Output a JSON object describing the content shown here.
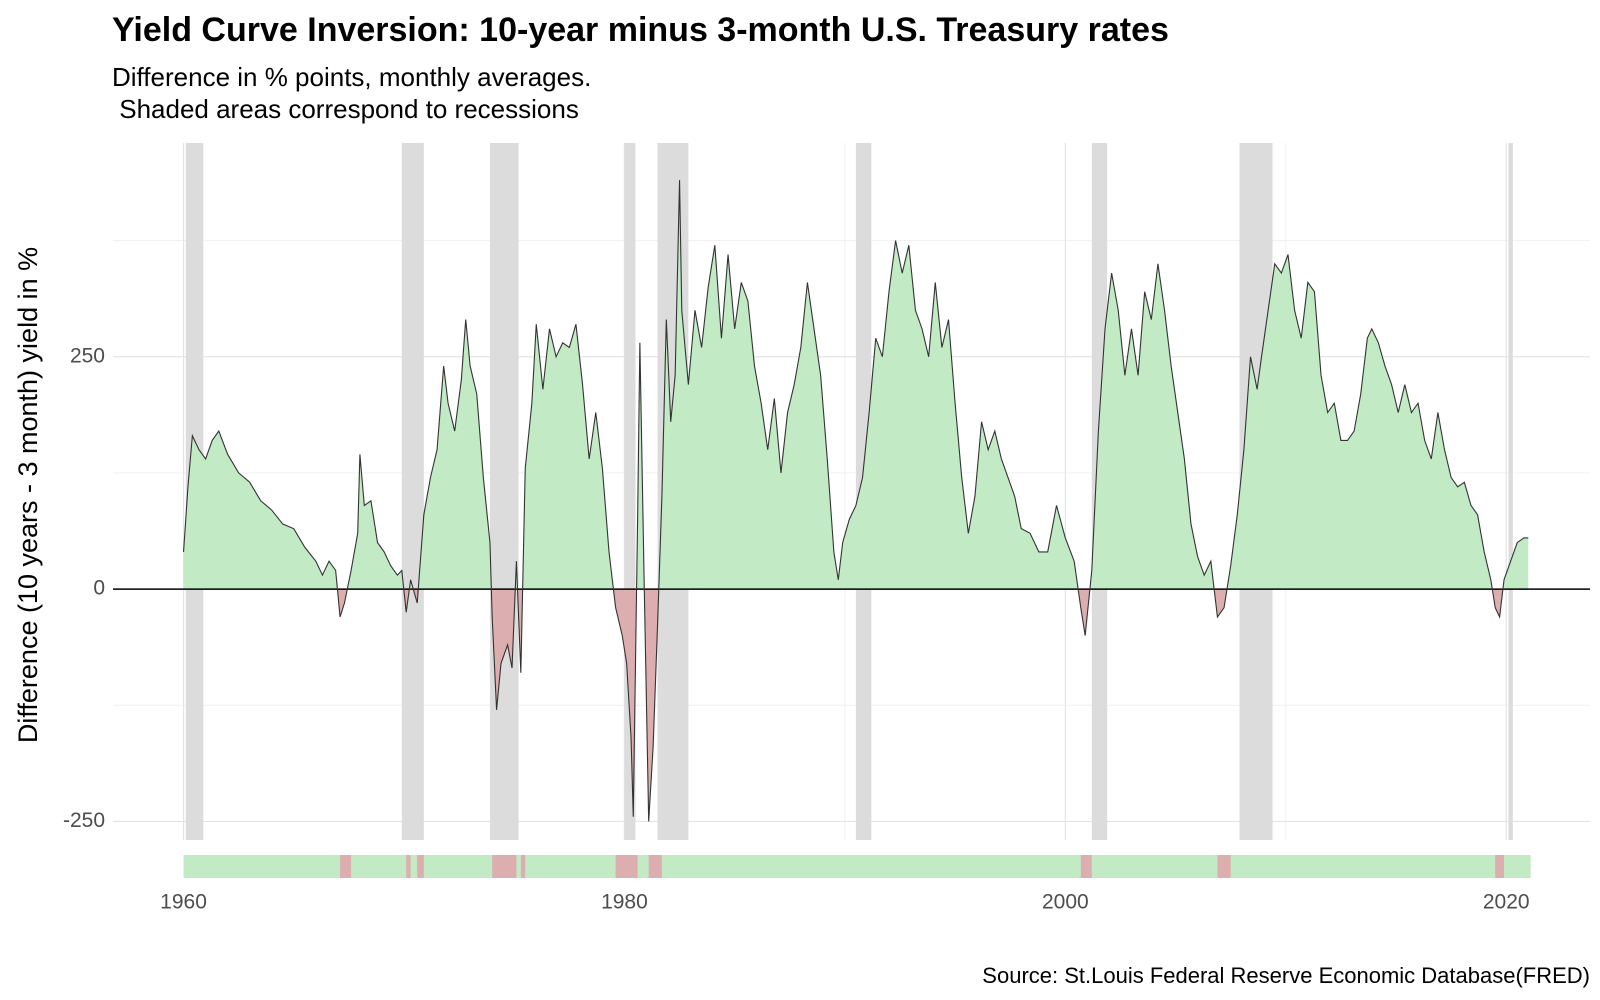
{
  "chart_data": {
    "type": "area",
    "title": "Yield Curve Inversion: 10-year minus 3-month U.S. Treasury rates",
    "subtitle": [
      "Difference in % points, monthly averages.",
      " Shaded areas correspond to recessions"
    ],
    "y_label": "Difference (10 years - 3 month) yield in %",
    "source": "Source: St.Louis Federal Reserve Economic Database(FRED)",
    "xlim": [
      1956.8,
      2023.8
    ],
    "xticks": [
      1960,
      1980,
      2000,
      2020
    ],
    "x_minor_grid": [
      1970,
      1990,
      2010
    ],
    "ylim": [
      -270,
      480
    ],
    "yticks": [
      -250,
      0,
      250
    ],
    "y_minor_grid": [
      -125,
      125,
      375
    ],
    "grid": true,
    "zero_line": true,
    "positive_color": "#c1eac5",
    "negative_color": "#dcaeb0",
    "line_color": "#333333",
    "recession_color": "#dcdcdc",
    "recessions": [
      [
        1960.1,
        1960.9
      ],
      [
        1969.9,
        1970.9
      ],
      [
        1973.9,
        1975.2
      ],
      [
        1980.0,
        1980.5
      ],
      [
        1981.5,
        1982.9
      ],
      [
        1990.5,
        1991.2
      ],
      [
        2001.2,
        2001.9
      ],
      [
        2007.9,
        2009.4
      ],
      [
        2020.1,
        2020.3
      ]
    ],
    "x": [
      1960.0,
      1960.2,
      1960.4,
      1960.7,
      1961.0,
      1961.3,
      1961.6,
      1962.0,
      1962.5,
      1963.0,
      1963.5,
      1964.0,
      1964.5,
      1965.0,
      1965.5,
      1966.0,
      1966.3,
      1966.6,
      1966.9,
      1967.1,
      1967.3,
      1967.6,
      1967.9,
      1968.0,
      1968.2,
      1968.5,
      1968.8,
      1969.1,
      1969.4,
      1969.7,
      1969.9,
      1970.1,
      1970.3,
      1970.6,
      1970.9,
      1971.2,
      1971.5,
      1971.8,
      1972.0,
      1972.3,
      1972.6,
      1972.8,
      1973.0,
      1973.3,
      1973.6,
      1973.9,
      1974.0,
      1974.2,
      1974.4,
      1974.7,
      1974.9,
      1975.1,
      1975.3,
      1975.5,
      1975.8,
      1976.0,
      1976.3,
      1976.6,
      1976.9,
      1977.2,
      1977.5,
      1977.8,
      1978.1,
      1978.4,
      1978.7,
      1979.0,
      1979.3,
      1979.6,
      1979.9,
      1980.1,
      1980.3,
      1980.4,
      1980.6,
      1980.7,
      1980.9,
      1981.1,
      1981.3,
      1981.5,
      1981.7,
      1981.9,
      1982.1,
      1982.3,
      1982.5,
      1982.6,
      1982.9,
      1983.2,
      1983.5,
      1983.8,
      1984.1,
      1984.4,
      1984.7,
      1985.0,
      1985.3,
      1985.6,
      1985.9,
      1986.2,
      1986.5,
      1986.8,
      1987.1,
      1987.4,
      1987.7,
      1988.0,
      1988.3,
      1988.6,
      1988.9,
      1989.2,
      1989.5,
      1989.7,
      1989.9,
      1990.2,
      1990.5,
      1990.8,
      1991.1,
      1991.4,
      1991.7,
      1992.0,
      1992.3,
      1992.6,
      1992.9,
      1993.2,
      1993.5,
      1993.8,
      1994.1,
      1994.4,
      1994.7,
      1995.0,
      1995.3,
      1995.6,
      1995.9,
      1996.2,
      1996.5,
      1996.8,
      1997.1,
      1997.4,
      1997.7,
      1998.0,
      1998.4,
      1998.8,
      1999.2,
      1999.6,
      2000.0,
      2000.4,
      2000.7,
      2000.9,
      2001.2,
      2001.5,
      2001.8,
      2002.1,
      2002.4,
      2002.7,
      2003.0,
      2003.3,
      2003.6,
      2003.9,
      2004.2,
      2004.5,
      2004.8,
      2005.1,
      2005.4,
      2005.7,
      2006.0,
      2006.3,
      2006.6,
      2006.9,
      2007.2,
      2007.5,
      2007.8,
      2008.1,
      2008.4,
      2008.7,
      2008.9,
      2009.2,
      2009.5,
      2009.8,
      2010.1,
      2010.4,
      2010.7,
      2011.0,
      2011.3,
      2011.6,
      2011.9,
      2012.2,
      2012.5,
      2012.8,
      2013.1,
      2013.4,
      2013.7,
      2013.9,
      2014.2,
      2014.5,
      2014.8,
      2015.1,
      2015.4,
      2015.7,
      2016.0,
      2016.3,
      2016.6,
      2016.9,
      2017.2,
      2017.5,
      2017.8,
      2018.1,
      2018.4,
      2018.7,
      2019.0,
      2019.3,
      2019.5,
      2019.7,
      2019.9,
      2020.2,
      2020.5,
      2020.8,
      2021.0
    ],
    "values": [
      40,
      110,
      165,
      150,
      140,
      160,
      170,
      145,
      125,
      115,
      95,
      85,
      70,
      65,
      45,
      30,
      15,
      30,
      20,
      -30,
      -15,
      20,
      60,
      145,
      90,
      95,
      50,
      40,
      25,
      15,
      20,
      -25,
      10,
      -15,
      80,
      120,
      150,
      240,
      200,
      170,
      225,
      290,
      240,
      210,
      120,
      50,
      -30,
      -130,
      -80,
      -60,
      -85,
      30,
      -90,
      130,
      200,
      285,
      215,
      280,
      250,
      265,
      260,
      285,
      220,
      140,
      190,
      130,
      40,
      -20,
      -50,
      -80,
      -160,
      -245,
      80,
      265,
      0,
      -250,
      -170,
      -40,
      100,
      290,
      180,
      230,
      440,
      300,
      220,
      300,
      260,
      325,
      370,
      270,
      360,
      280,
      330,
      310,
      240,
      200,
      150,
      205,
      125,
      190,
      220,
      260,
      330,
      280,
      230,
      140,
      40,
      10,
      50,
      75,
      90,
      120,
      190,
      270,
      250,
      320,
      375,
      340,
      370,
      300,
      280,
      250,
      330,
      260,
      290,
      200,
      120,
      60,
      100,
      180,
      150,
      170,
      140,
      120,
      100,
      65,
      60,
      40,
      40,
      90,
      55,
      30,
      -20,
      -50,
      20,
      170,
      280,
      340,
      300,
      230,
      280,
      230,
      320,
      290,
      350,
      300,
      240,
      190,
      140,
      70,
      35,
      15,
      30,
      -30,
      -20,
      25,
      80,
      150,
      250,
      215,
      250,
      300,
      350,
      340,
      360,
      300,
      270,
      330,
      320,
      230,
      190,
      200,
      160,
      160,
      170,
      210,
      270,
      280,
      265,
      240,
      220,
      190,
      220,
      190,
      200,
      160,
      140,
      190,
      150,
      120,
      110,
      115,
      90,
      80,
      40,
      10,
      -20,
      -30,
      10,
      30,
      50,
      55,
      55
    ]
  }
}
